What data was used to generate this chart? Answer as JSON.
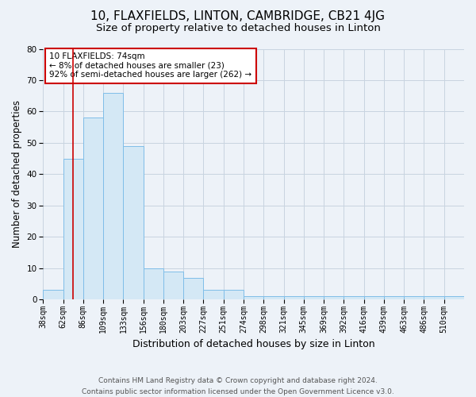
{
  "title": "10, FLAXFIELDS, LINTON, CAMBRIDGE, CB21 4JG",
  "subtitle": "Size of property relative to detached houses in Linton",
  "xlabel": "Distribution of detached houses by size in Linton",
  "ylabel": "Number of detached properties",
  "bar_labels": [
    "38sqm",
    "62sqm",
    "86sqm",
    "109sqm",
    "133sqm",
    "156sqm",
    "180sqm",
    "203sqm",
    "227sqm",
    "251sqm",
    "274sqm",
    "298sqm",
    "321sqm",
    "345sqm",
    "369sqm",
    "392sqm",
    "416sqm",
    "439sqm",
    "463sqm",
    "486sqm",
    "510sqm"
  ],
  "bar_values": [
    3,
    45,
    58,
    66,
    49,
    10,
    9,
    7,
    3,
    3,
    1,
    1,
    1,
    1,
    1,
    1,
    1,
    1,
    1,
    1,
    1
  ],
  "bar_color": "#d4e8f5",
  "bar_edge_color": "#7fbee8",
  "grid_color": "#c8d4e0",
  "annotation_text": "10 FLAXFIELDS: 74sqm\n← 8% of detached houses are smaller (23)\n92% of semi-detached houses are larger (262) →",
  "annotation_box_color": "#ffffff",
  "annotation_border_color": "#cc0000",
  "vline_x": 1.5,
  "vline_color": "#cc0000",
  "ylim": [
    0,
    80
  ],
  "yticks": [
    0,
    10,
    20,
    30,
    40,
    50,
    60,
    70,
    80
  ],
  "footer_line1": "Contains HM Land Registry data © Crown copyright and database right 2024.",
  "footer_line2": "Contains public sector information licensed under the Open Government Licence v3.0.",
  "bg_color": "#edf2f8",
  "title_fontsize": 11,
  "subtitle_fontsize": 9.5,
  "tick_fontsize": 7,
  "ylabel_fontsize": 8.5,
  "xlabel_fontsize": 9,
  "footer_fontsize": 6.5,
  "annotation_fontsize": 7.5
}
